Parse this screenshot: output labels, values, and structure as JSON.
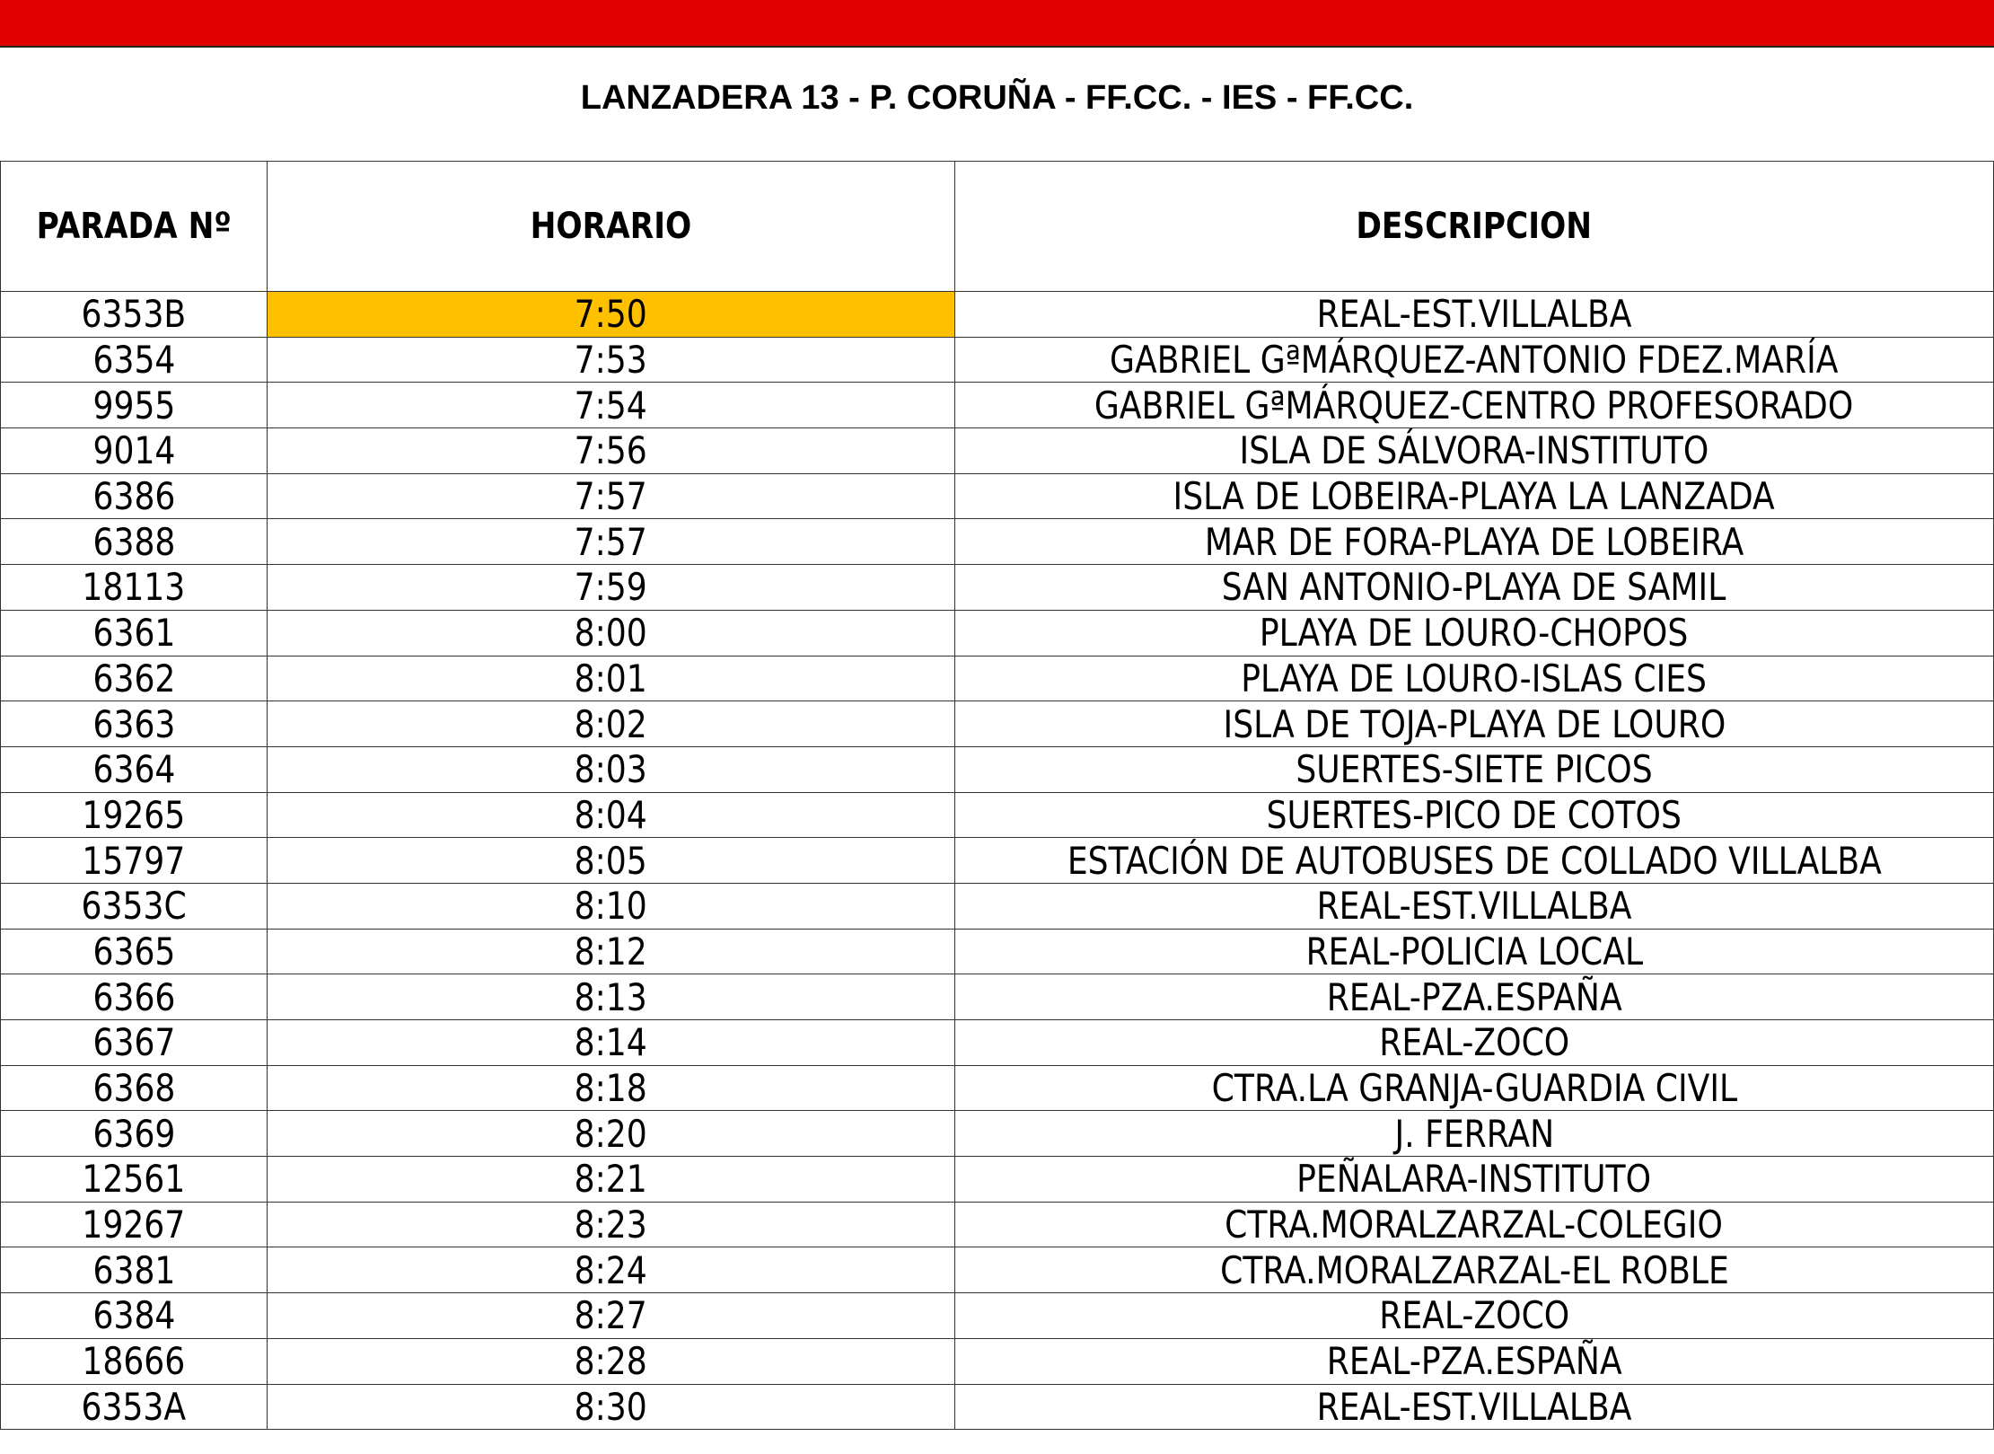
{
  "title": "LANZADERA 13 - P. CORUÑA - FF.CC. - IES - FF.CC.",
  "colors": {
    "header_bar": "#e10000",
    "highlight": "#ffc000"
  },
  "table": {
    "headers": [
      "PARADA Nº",
      "HORARIO",
      "DESCRIPCION"
    ],
    "rows": [
      [
        "6353B",
        "7:50",
        "REAL-EST.VILLALBA"
      ],
      [
        "6354",
        "7:53",
        "GABRIEL GªMÁRQUEZ-ANTONIO FDEZ.MARÍA"
      ],
      [
        "9955",
        "7:54",
        "GABRIEL GªMÁRQUEZ-CENTRO PROFESORADO"
      ],
      [
        "9014",
        "7:56",
        "ISLA DE SÁLVORA-INSTITUTO"
      ],
      [
        "6386",
        "7:57",
        "ISLA DE LOBEIRA-PLAYA LA LANZADA"
      ],
      [
        "6388",
        "7:57",
        "MAR DE FORA-PLAYA DE LOBEIRA"
      ],
      [
        "18113",
        "7:59",
        "SAN ANTONIO-PLAYA DE SAMIL"
      ],
      [
        "6361",
        "8:00",
        "PLAYA DE LOURO-CHOPOS"
      ],
      [
        "6362",
        "8:01",
        "PLAYA DE LOURO-ISLAS CIES"
      ],
      [
        "6363",
        "8:02",
        "ISLA DE TOJA-PLAYA DE LOURO"
      ],
      [
        "6364",
        "8:03",
        "SUERTES-SIETE PICOS"
      ],
      [
        "19265",
        "8:04",
        "SUERTES-PICO DE COTOS"
      ],
      [
        "15797",
        "8:05",
        "ESTACIÓN DE AUTOBUSES DE COLLADO VILLALBA"
      ],
      [
        "6353C",
        "8:10",
        "REAL-EST.VILLALBA"
      ],
      [
        "6365",
        "8:12",
        "REAL-POLICIA LOCAL"
      ],
      [
        "6366",
        "8:13",
        "REAL-PZA.ESPAÑA"
      ],
      [
        "6367",
        "8:14",
        "REAL-ZOCO"
      ],
      [
        "6368",
        "8:18",
        "CTRA.LA GRANJA-GUARDIA CIVIL"
      ],
      [
        "6369",
        "8:20",
        "J. FERRAN"
      ],
      [
        "12561",
        "8:21",
        "PEÑALARA-INSTITUTO"
      ],
      [
        "19267",
        "8:23",
        "CTRA.MORALZARZAL-COLEGIO"
      ],
      [
        "6381",
        "8:24",
        "CTRA.MORALZARZAL-EL ROBLE"
      ],
      [
        "6384",
        "8:27",
        "REAL-ZOCO"
      ],
      [
        "18666",
        "8:28",
        "REAL-PZA.ESPAÑA"
      ],
      [
        "6353A",
        "8:30",
        "REAL-EST.VILLALBA"
      ]
    ]
  }
}
